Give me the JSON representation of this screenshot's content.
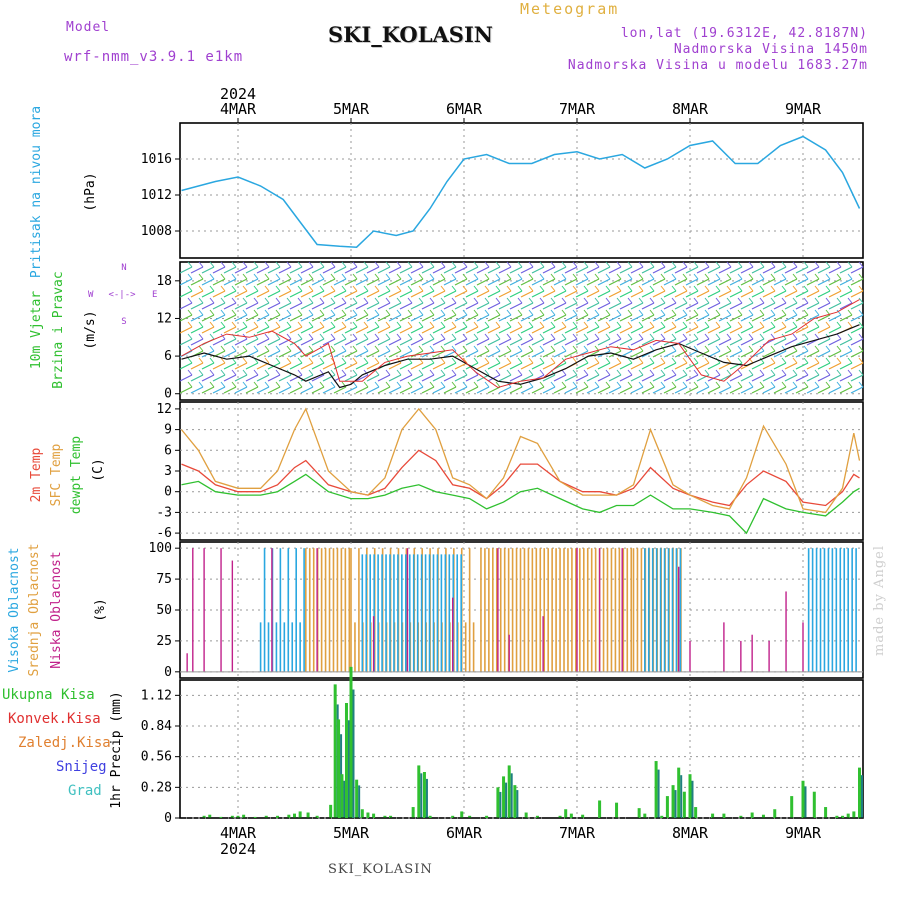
{
  "header": {
    "model_label": "Model",
    "model_name": "wrf-nmm_v3.9.1 e1km",
    "title": "SKI_KOLASIN",
    "subtitle": "Meteogram",
    "coords": "lon,lat (19.6312E, 42.8187N)",
    "elevation": "Nadmorska Visina 1450m",
    "model_elevation": "Nadmorska Visina u modelu 1683.27m"
  },
  "footer": {
    "station": "SKI_KOLASIN",
    "signature": "made by Angel"
  },
  "time_axis": {
    "year": "2024",
    "days": [
      "4MAR",
      "5MAR",
      "6MAR",
      "7MAR",
      "8MAR",
      "9MAR"
    ]
  },
  "wind_legend": [
    "N",
    "W",
    "E",
    "<-|->",
    "S"
  ],
  "colors": {
    "pressure": "#2aa7e0",
    "wind_speed": "#111111",
    "gust": "#e03030",
    "t2m": "#e84a3a",
    "tsfc": "#e0a040",
    "tdew": "#30c030",
    "cloud_high": "#2aa7e0",
    "cloud_mid": "#e0a040",
    "cloud_low": "#c0208a",
    "precip_total": "#30c030",
    "precip_conv": "#e03030",
    "precip_frozen": "#e08030",
    "precip_snow": "#4040e0",
    "precip_graupel": "#40c0c0"
  },
  "chart_data": [
    {
      "type": "line",
      "panel": "pressure",
      "ylabel_main": "Pritisak na nivou mora",
      "ylabel_unit": "(hPa)",
      "yticks": [
        "1008",
        "1012",
        "1016"
      ],
      "ylim": [
        1005,
        1020
      ],
      "x_day_fraction": [
        3.5,
        3.8,
        4.0,
        4.2,
        4.4,
        4.55,
        4.7,
        4.9,
        5.05,
        5.2,
        5.4,
        5.55,
        5.7,
        5.85,
        6.0,
        6.2,
        6.4,
        6.6,
        6.8,
        7.0,
        7.2,
        7.4,
        7.6,
        7.8,
        8.0,
        8.2,
        8.4,
        8.6,
        8.8,
        9.0,
        9.2,
        9.35,
        9.5
      ],
      "series": [
        {
          "values": [
            1012.5,
            1013.5,
            1014.0,
            1013.0,
            1011.5,
            1009.0,
            1006.5,
            1006.3,
            1006.2,
            1008.0,
            1007.5,
            1008.0,
            1010.5,
            1013.5,
            1016.0,
            1016.5,
            1015.5,
            1015.5,
            1016.5,
            1016.8,
            1016.0,
            1016.5,
            1015.0,
            1016.0,
            1017.5,
            1018.0,
            1015.5,
            1015.5,
            1017.5,
            1018.5,
            1017.0,
            1014.5,
            1010.5
          ]
        }
      ]
    },
    {
      "type": "line",
      "panel": "wind",
      "ylabel_main": "10m Vjetar",
      "ylabel_sub": "Brzina i Pravac",
      "ylabel_unit": "(m/s)",
      "yticks": [
        "0",
        "6",
        "12",
        "18"
      ],
      "ylim": [
        -1,
        21
      ],
      "x_day_fraction": [
        3.5,
        3.7,
        3.9,
        4.1,
        4.3,
        4.5,
        4.6,
        4.8,
        4.9,
        5.0,
        5.1,
        5.3,
        5.5,
        5.7,
        5.9,
        6.1,
        6.3,
        6.5,
        6.7,
        6.9,
        7.1,
        7.3,
        7.5,
        7.7,
        7.9,
        8.1,
        8.3,
        8.5,
        8.7,
        8.9,
        9.1,
        9.3,
        9.5
      ],
      "series": [
        {
          "values": [
            5.5,
            6.5,
            5.5,
            6.0,
            4.5,
            3.0,
            2.0,
            3.5,
            1.0,
            1.5,
            3.0,
            4.5,
            5.5,
            5.5,
            6.0,
            4.0,
            2.0,
            1.5,
            2.5,
            4.0,
            6.0,
            6.5,
            5.5,
            7.0,
            8.0,
            6.5,
            5.0,
            4.5,
            6.0,
            7.5,
            8.5,
            9.5,
            11.0
          ]
        }
      ],
      "gust_x_day_fraction": [
        3.5,
        3.7,
        3.9,
        4.1,
        4.3,
        4.5,
        4.6,
        4.8,
        4.9,
        5.0,
        5.1,
        5.3,
        5.5,
        5.7,
        5.9,
        6.1,
        6.3,
        6.5,
        6.7,
        6.9,
        7.1,
        7.3,
        7.5,
        7.7,
        7.9,
        8.1,
        8.3,
        8.5,
        8.7,
        8.9,
        9.1,
        9.3,
        9.5
      ],
      "gust_values": [
        6.0,
        8.0,
        9.5,
        9.0,
        10.0,
        8.0,
        6.0,
        8.0,
        2.0,
        2.0,
        2.0,
        5.0,
        6.0,
        6.5,
        7.0,
        3.5,
        1.0,
        2.0,
        2.5,
        5.5,
        6.5,
        7.5,
        7.0,
        8.5,
        8.0,
        3.0,
        2.0,
        5.0,
        8.5,
        9.5,
        12.0,
        13.0,
        15.0
      ]
    },
    {
      "type": "line",
      "panel": "temperature",
      "ylabel_main": "2m Temp",
      "ylabel_sub": "SFC Temp",
      "ylabel_sub2": "dewpt Temp",
      "ylabel_unit": "(C)",
      "yticks": [
        "-6",
        "-3",
        "0",
        "3",
        "6",
        "9",
        "12"
      ],
      "ylim": [
        -7,
        13
      ],
      "x_day_fraction": [
        3.5,
        3.65,
        3.8,
        4.0,
        4.2,
        4.35,
        4.5,
        4.6,
        4.8,
        5.0,
        5.15,
        5.3,
        5.45,
        5.6,
        5.75,
        5.9,
        6.05,
        6.2,
        6.35,
        6.5,
        6.65,
        6.85,
        7.05,
        7.2,
        7.35,
        7.5,
        7.65,
        7.85,
        8.0,
        8.2,
        8.35,
        8.5,
        8.65,
        8.85,
        9.0,
        9.2,
        9.35,
        9.45,
        9.5
      ],
      "series": [
        {
          "name": "2m Temp",
          "values": [
            4.0,
            3.0,
            1.0,
            0.0,
            0.0,
            1.0,
            3.5,
            4.5,
            1.0,
            0.0,
            -0.5,
            0.5,
            3.5,
            6.0,
            4.5,
            1.0,
            0.5,
            -1.0,
            1.0,
            4.0,
            4.0,
            1.5,
            0.0,
            0.0,
            -0.5,
            0.5,
            3.5,
            0.5,
            -0.5,
            -1.5,
            -2.0,
            1.0,
            3.0,
            1.5,
            -1.5,
            -2.0,
            0.0,
            2.5,
            2.0
          ]
        },
        {
          "name": "SFC Temp",
          "values": [
            9.0,
            6.0,
            1.5,
            0.5,
            0.5,
            3.0,
            9.0,
            12.0,
            3.0,
            0.0,
            -0.5,
            2.0,
            9.0,
            12.0,
            9.0,
            2.0,
            1.0,
            -1.0,
            2.0,
            8.0,
            7.0,
            1.5,
            -0.5,
            -0.5,
            -0.5,
            1.0,
            9.0,
            1.0,
            -0.5,
            -2.0,
            -2.5,
            2.0,
            9.5,
            4.0,
            -2.5,
            -3.0,
            0.5,
            8.5,
            4.5
          ]
        },
        {
          "name": "dewpt Temp",
          "values": [
            1.0,
            1.5,
            0.0,
            -0.5,
            -0.5,
            0.0,
            1.5,
            2.5,
            0.0,
            -1.0,
            -1.0,
            -0.5,
            0.5,
            1.0,
            0.0,
            -0.5,
            -1.0,
            -2.5,
            -1.5,
            0.0,
            0.5,
            -1.0,
            -2.5,
            -3.0,
            -2.0,
            -2.0,
            -0.5,
            -2.5,
            -2.5,
            -3.0,
            -3.5,
            -6.0,
            -1.0,
            -2.5,
            -3.0,
            -3.5,
            -1.5,
            0.0,
            0.5
          ]
        }
      ]
    },
    {
      "type": "bar",
      "panel": "clouds",
      "ylabel_main": "Visoka Oblacnost",
      "ylabel_sub": "Srednja Oblacnost",
      "ylabel_sub2": "Niska Oblacnost",
      "ylabel_unit": "(%)",
      "yticks": [
        "0",
        "25",
        "50",
        "75",
        "100"
      ],
      "ylim": [
        -5,
        105
      ],
      "segments": [
        {
          "from": 4.2,
          "to": 4.6,
          "level": "high",
          "value": 100
        },
        {
          "from": 4.6,
          "to": 5.0,
          "level": "mid",
          "value": 100
        },
        {
          "from": 5.0,
          "to": 6.1,
          "level": "mid",
          "value": 100
        },
        {
          "from": 5.1,
          "to": 6.0,
          "level": "high",
          "value": 95
        },
        {
          "from": 6.15,
          "to": 6.5,
          "level": "mid",
          "value": 100
        },
        {
          "from": 6.5,
          "to": 7.5,
          "level": "mid",
          "value": 100
        },
        {
          "from": 7.5,
          "to": 7.95,
          "level": "mid",
          "value": 100
        },
        {
          "from": 7.6,
          "to": 7.95,
          "level": "high",
          "value": 100
        },
        {
          "from": 9.05,
          "to": 9.5,
          "level": "high",
          "value": 100
        }
      ],
      "low_spikes_day": [
        3.55,
        3.6,
        3.7,
        3.85,
        3.95,
        4.3,
        4.7,
        5.2,
        5.5,
        5.9,
        6.3,
        6.4,
        6.7,
        7.0,
        7.2,
        7.4,
        7.9,
        8.0,
        8.3,
        8.45,
        8.55,
        8.7,
        8.85,
        9.0
      ],
      "low_spike_values": [
        15,
        100,
        100,
        100,
        90,
        100,
        100,
        45,
        100,
        60,
        100,
        30,
        45,
        100,
        100,
        100,
        85,
        25,
        40,
        25,
        30,
        25,
        65,
        40
      ]
    },
    {
      "type": "bar",
      "panel": "precipitation",
      "ylabel_main": "1hr Precip (mm)",
      "yticks": [
        "0",
        "0.28",
        "0.56",
        "0.84",
        "1.12"
      ],
      "ylim": [
        0,
        1.26
      ],
      "legend": [
        "Ukupna Kisa",
        "Konvek.Kisa",
        "Zaledj.Kisa",
        "Snijeg",
        "Grad"
      ],
      "x_day_fraction": [
        3.7,
        3.75,
        3.85,
        3.95,
        4.0,
        4.05,
        4.15,
        4.25,
        4.35,
        4.45,
        4.5,
        4.55,
        4.62,
        4.7,
        4.82,
        4.86,
        4.89,
        4.92,
        4.96,
        5.0,
        5.05,
        5.1,
        5.15,
        5.2,
        5.3,
        5.35,
        5.55,
        5.6,
        5.65,
        5.7,
        5.9,
        5.98,
        6.05,
        6.2,
        6.3,
        6.35,
        6.4,
        6.45,
        6.55,
        6.65,
        6.85,
        6.9,
        6.95,
        7.05,
        7.2,
        7.35,
        7.55,
        7.6,
        7.7,
        7.75,
        7.8,
        7.85,
        7.9,
        7.95,
        8.0,
        8.05,
        8.2,
        8.3,
        8.45,
        8.55,
        8.65,
        8.75,
        8.9,
        9.0,
        9.1,
        9.2,
        9.3,
        9.35,
        9.4,
        9.45,
        9.5
      ],
      "series": [
        {
          "name": "Ukupna Kisa",
          "values": [
            0.02,
            0.03,
            0.01,
            0.02,
            0.02,
            0.03,
            0.01,
            0.02,
            0.02,
            0.03,
            0.04,
            0.06,
            0.05,
            0.02,
            0.12,
            1.22,
            0.9,
            0.4,
            1.05,
            1.38,
            0.35,
            0.08,
            0.05,
            0.04,
            0.02,
            0.02,
            0.1,
            0.48,
            0.42,
            0.02,
            0.02,
            0.06,
            0.02,
            0.02,
            0.28,
            0.38,
            0.48,
            0.3,
            0.05,
            0.02,
            0.02,
            0.08,
            0.04,
            0.03,
            0.16,
            0.14,
            0.09,
            0.04,
            0.52,
            0.02,
            0.2,
            0.3,
            0.46,
            0.24,
            0.4,
            0.1,
            0.04,
            0.04,
            0.02,
            0.05,
            0.03,
            0.08,
            0.2,
            0.34,
            0.24,
            0.1,
            0.02,
            0.02,
            0.04,
            0.06,
            0.46
          ]
        }
      ]
    }
  ]
}
